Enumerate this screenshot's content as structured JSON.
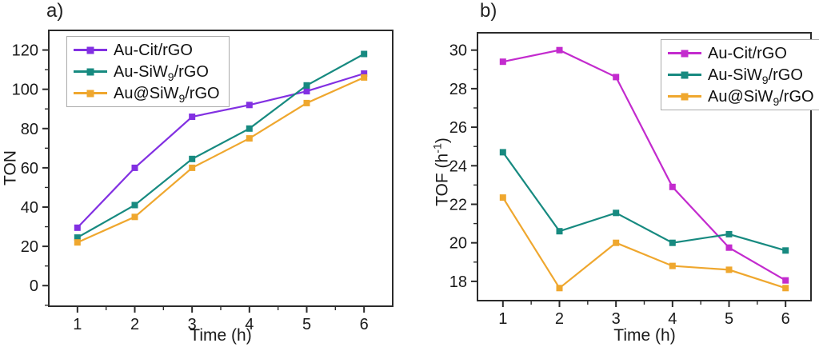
{
  "figure": {
    "background": "#FFFFFF",
    "frame_color": "#2B2B2B",
    "text_color": "#1A1A1A",
    "legend_border_color": "#ABABAB"
  },
  "chart_data": [
    {
      "type": "line",
      "panel_label": "a)",
      "xlabel": "Time (h)",
      "ylabel": "TON",
      "x": [
        1,
        2,
        3,
        4,
        5,
        6
      ],
      "x_ticks": [
        1,
        2,
        3,
        4,
        5,
        6
      ],
      "y_ticks": [
        0,
        20,
        40,
        60,
        80,
        100,
        120
      ],
      "xlim": [
        0.5,
        6.5
      ],
      "ylim": [
        -10.5,
        130
      ],
      "x_minor_step": 0.5,
      "y_minor_step": 10,
      "grid": false,
      "legend_position": "top-left",
      "series": [
        {
          "name": "Au-Cit/rGO",
          "color": "#8230E2",
          "marker": "square",
          "values": [
            29.5,
            60,
            86,
            92,
            99,
            108
          ],
          "label_parts": [
            {
              "t": "Au-Cit/rGO"
            }
          ]
        },
        {
          "name": "Au-SiW9/rGO",
          "color": "#178A80",
          "marker": "square",
          "values": [
            24.5,
            41,
            64.5,
            80,
            102,
            118
          ],
          "label_parts": [
            {
              "t": "Au-SiW"
            },
            {
              "t": "9",
              "sub": true
            },
            {
              "t": "/rGO"
            }
          ]
        },
        {
          "name": "Au@SiW9/rGO",
          "color": "#EFA72E",
          "marker": "square",
          "values": [
            22,
            35,
            60,
            75,
            93,
            106
          ],
          "label_parts": [
            {
              "t": "Au@SiW"
            },
            {
              "t": "9",
              "sub": true
            },
            {
              "t": "/rGO"
            }
          ]
        }
      ]
    },
    {
      "type": "line",
      "panel_label": "b)",
      "xlabel": "Time (h)",
      "ylabel": "TOF (h-1)",
      "ylabel_parts": [
        {
          "t": "TOF (h"
        },
        {
          "t": "-1",
          "sup": true
        },
        {
          "t": ")"
        }
      ],
      "x": [
        1,
        2,
        3,
        4,
        5,
        6
      ],
      "x_ticks": [
        1,
        2,
        3,
        4,
        5,
        6
      ],
      "y_ticks": [
        18,
        20,
        22,
        24,
        26,
        28,
        30
      ],
      "xlim": [
        0.55,
        6.45
      ],
      "ylim": [
        17,
        30.9
      ],
      "x_minor_step": 0.5,
      "y_minor_step": 1,
      "grid": false,
      "legend_position": "top-right",
      "series": [
        {
          "name": "Au-Cit/rGO",
          "color": "#C32BCE",
          "marker": "square",
          "values": [
            29.4,
            30.0,
            28.6,
            22.9,
            19.75,
            18.05
          ],
          "label_parts": [
            {
              "t": "Au-Cit/rGO"
            }
          ]
        },
        {
          "name": "Au-SiW9/rGO",
          "color": "#178A80",
          "marker": "square",
          "values": [
            24.7,
            20.6,
            21.55,
            20.0,
            20.45,
            19.6
          ],
          "label_parts": [
            {
              "t": "Au-SiW"
            },
            {
              "t": "9",
              "sub": true
            },
            {
              "t": "/rGO"
            }
          ]
        },
        {
          "name": "Au@SiW9/rGO",
          "color": "#EFA72E",
          "marker": "square",
          "values": [
            22.35,
            17.65,
            20.0,
            18.8,
            18.6,
            17.65
          ],
          "label_parts": [
            {
              "t": "Au@SiW"
            },
            {
              "t": "9",
              "sub": true
            },
            {
              "t": "/rGO"
            }
          ]
        }
      ]
    }
  ]
}
